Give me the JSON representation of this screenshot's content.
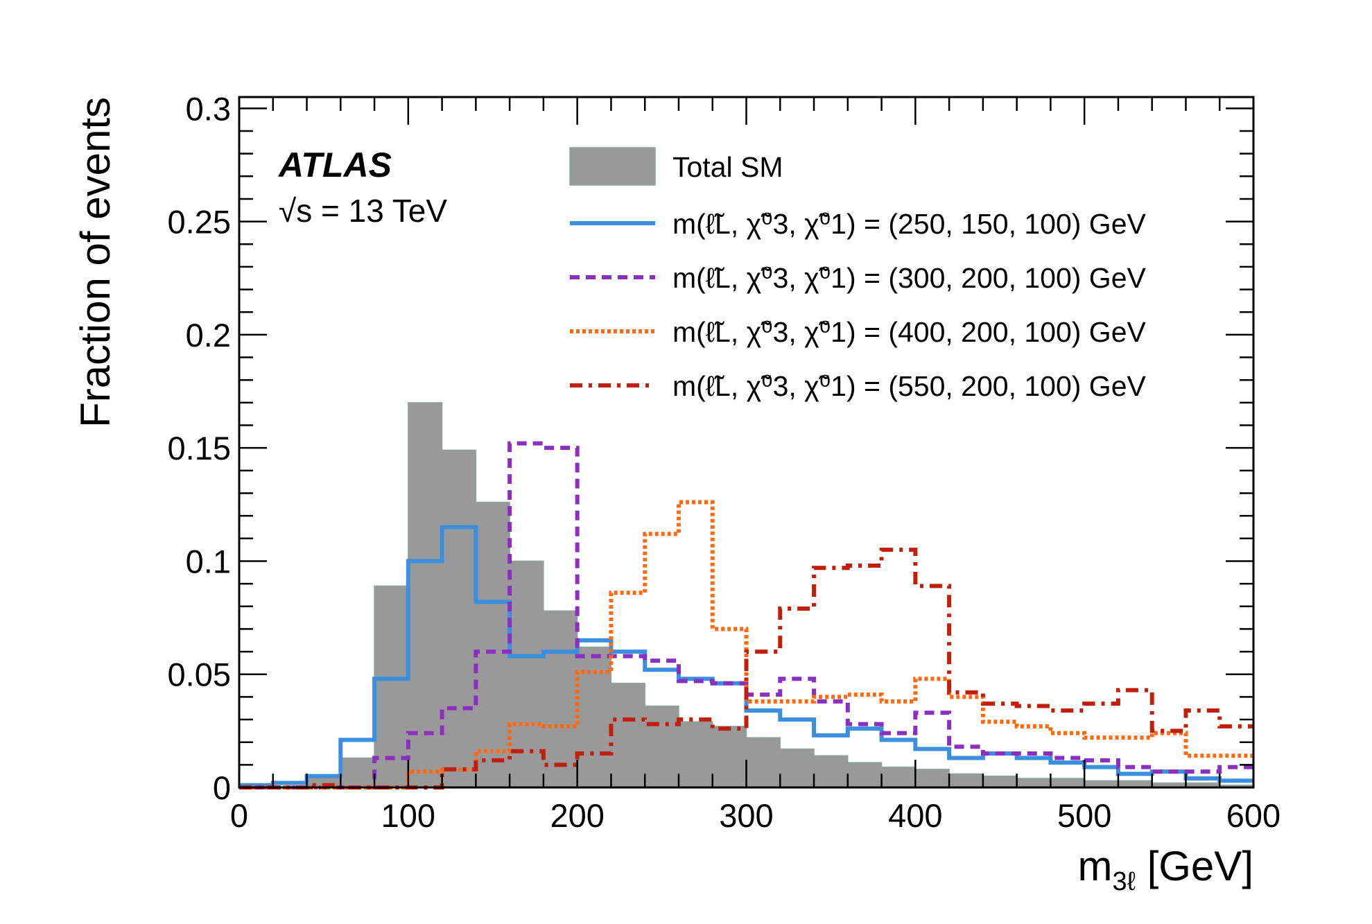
{
  "chart_data": {
    "type": "histogram",
    "xlabel_main": "m",
    "xlabel_sub": "3ℓ",
    "xlabel_unit": " [GeV]",
    "ylabel": "Fraction of events",
    "xlim": [
      0,
      600
    ],
    "ylim": [
      0,
      0.305
    ],
    "x_ticks": [
      "0",
      "100",
      "200",
      "300",
      "400",
      "500",
      "600"
    ],
    "y_ticks": [
      "0",
      "0.05",
      "0.1",
      "0.15",
      "0.2",
      "0.25",
      "0.3"
    ],
    "bin_edges": [
      0,
      20,
      40,
      60,
      80,
      100,
      120,
      140,
      160,
      180,
      200,
      220,
      240,
      260,
      280,
      300,
      320,
      340,
      360,
      380,
      400,
      420,
      440,
      460,
      480,
      500,
      520,
      540,
      560,
      580,
      600
    ],
    "experiment_label": "ATLAS",
    "energy_label": "√s = 13 TeV",
    "series": [
      {
        "name": "Total SM",
        "style": "filled",
        "color": "#999999",
        "values": [
          0.0,
          0.0,
          0.005,
          0.013,
          0.089,
          0.17,
          0.149,
          0.126,
          0.1,
          0.078,
          0.062,
          0.046,
          0.036,
          0.029,
          0.027,
          0.022,
          0.017,
          0.014,
          0.011,
          0.009,
          0.008,
          0.006,
          0.005,
          0.004,
          0.004,
          0.003,
          0.003,
          0.002,
          0.002,
          0.001
        ]
      },
      {
        "name": "m(ℓ̃L, χ̃⁰3, χ̃⁰1) = (250, 150, 100) GeV",
        "style": "solid",
        "color": "#3b8fde",
        "values": [
          0.001,
          0.002,
          0.005,
          0.021,
          0.048,
          0.1,
          0.115,
          0.082,
          0.058,
          0.06,
          0.065,
          0.06,
          0.052,
          0.048,
          0.046,
          0.034,
          0.03,
          0.023,
          0.026,
          0.021,
          0.017,
          0.013,
          0.015,
          0.013,
          0.011,
          0.009,
          0.006,
          0.007,
          0.004,
          0.003
        ]
      },
      {
        "name": "m(ℓ̃L, χ̃⁰3, χ̃⁰1) = (300, 200, 100) GeV",
        "style": "dashed",
        "color": "#8a2fbf",
        "values": [
          0.0,
          0.0,
          0.0,
          0.0,
          0.013,
          0.024,
          0.035,
          0.06,
          0.152,
          0.15,
          0.058,
          0.058,
          0.056,
          0.047,
          0.046,
          0.041,
          0.048,
          0.038,
          0.028,
          0.024,
          0.033,
          0.018,
          0.015,
          0.015,
          0.013,
          0.012,
          0.009,
          0.007,
          0.007,
          0.009
        ]
      },
      {
        "name": "m(ℓ̃L, χ̃⁰3, χ̃⁰1) = (400, 200, 100) GeV",
        "style": "dotted",
        "color": "#ff6a10",
        "values": [
          0.0,
          0.0,
          0.0,
          0.0,
          0.0,
          0.007,
          0.008,
          0.016,
          0.028,
          0.027,
          0.051,
          0.086,
          0.112,
          0.126,
          0.07,
          0.038,
          0.038,
          0.04,
          0.041,
          0.038,
          0.048,
          0.04,
          0.029,
          0.027,
          0.024,
          0.022,
          0.022,
          0.024,
          0.014,
          0.014
        ]
      },
      {
        "name": "m(ℓ̃L, χ̃⁰3, χ̃⁰1) = (550, 200, 100) GeV",
        "style": "dashdot",
        "color": "#c01f0b",
        "values": [
          0.0,
          0.0,
          0.001,
          0.0,
          0.0,
          0.0,
          0.008,
          0.012,
          0.016,
          0.01,
          0.015,
          0.03,
          0.028,
          0.03,
          0.026,
          0.06,
          0.079,
          0.097,
          0.098,
          0.105,
          0.089,
          0.042,
          0.037,
          0.036,
          0.034,
          0.037,
          0.043,
          0.025,
          0.034,
          0.027
        ]
      }
    ]
  }
}
